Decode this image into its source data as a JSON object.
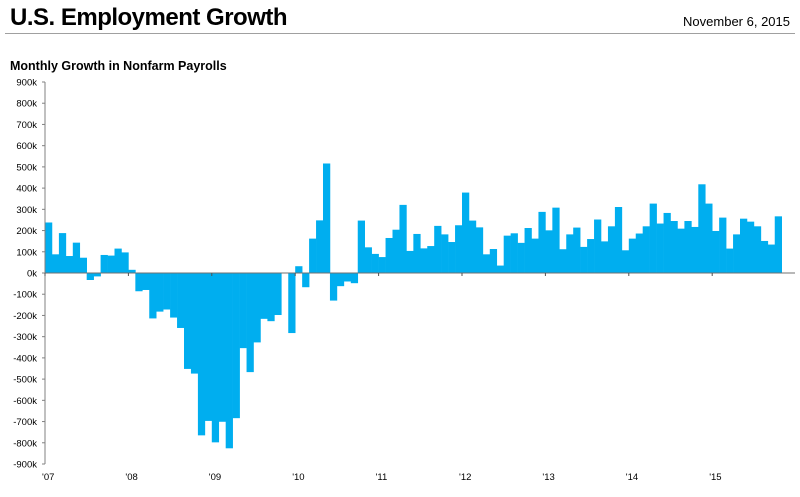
{
  "header": {
    "title": "U.S. Employment Growth",
    "date": "November 6, 2015"
  },
  "chart_data": {
    "type": "bar",
    "title": "Monthly Growth in Nonfarm Payrolls",
    "xlabel": "",
    "ylabel": "",
    "ylim": [
      -900,
      900
    ],
    "y_unit": "thousands",
    "y_ticks": [
      "900k",
      "800k",
      "700k",
      "600k",
      "500k",
      "400k",
      "300k",
      "200k",
      "100k",
      "0k",
      "-100k",
      "-200k",
      "-300k",
      "-400k",
      "-500k",
      "-600k",
      "-700k",
      "-800k",
      "-900k"
    ],
    "x_ticks": [
      "'07",
      "'08",
      "'09",
      "'10",
      "'11",
      "'12",
      "'13",
      "'14",
      "'15"
    ],
    "start": "2007-01",
    "end": "2015-10",
    "bar_color": "#00AEEF",
    "values": [
      238,
      88,
      188,
      80,
      143,
      72,
      -33,
      -16,
      85,
      82,
      115,
      97,
      15,
      -86,
      -80,
      -214,
      -182,
      -172,
      -210,
      -259,
      -452,
      -474,
      -765,
      -697,
      -798,
      -701,
      -826,
      -684,
      -354,
      -467,
      -327,
      -216,
      -227,
      -198,
      0,
      -283,
      32,
      -67,
      162,
      248,
      516,
      -130,
      -62,
      -40,
      -48,
      247,
      121,
      90,
      75,
      165,
      204,
      321,
      104,
      184,
      116,
      127,
      222,
      182,
      146,
      225,
      379,
      247,
      215,
      88,
      113,
      35,
      176,
      187,
      142,
      212,
      162,
      288,
      201,
      308,
      112,
      182,
      214,
      123,
      160,
      252,
      149,
      220,
      311,
      107,
      162,
      186,
      220,
      327,
      233,
      283,
      245,
      209,
      245,
      217,
      418,
      327,
      198,
      261,
      115,
      182,
      256,
      242,
      220,
      151,
      134,
      267
    ]
  }
}
